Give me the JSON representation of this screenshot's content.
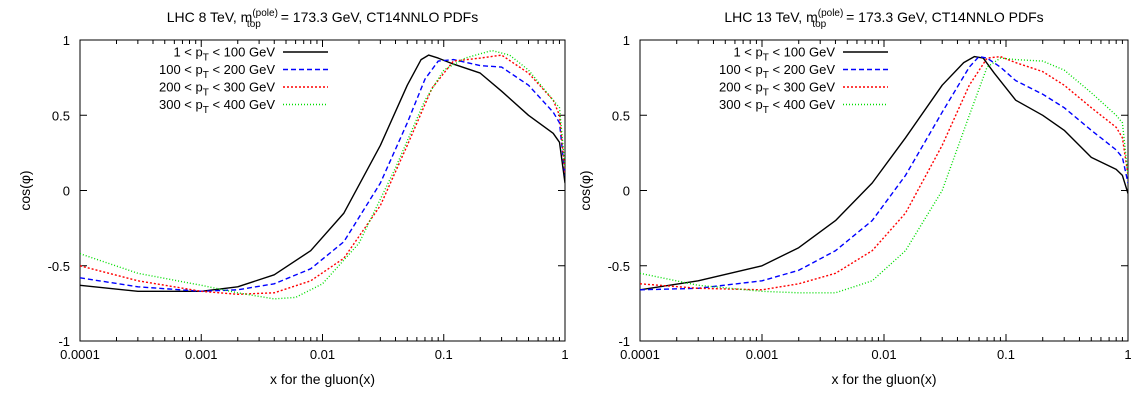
{
  "chart_data": [
    {
      "type": "line",
      "title": {
        "pre": "LHC 8 TeV, m",
        "sup": "(pole)",
        "sub": "top",
        "post": "= 173.3 GeV, CT14NNLO PDFs"
      },
      "xlabel": "x for the gluon(x)",
      "ylabel": "cos(φ)",
      "xscale": "log",
      "xlim": [
        0.0001,
        1
      ],
      "ylim": [
        -1,
        1
      ],
      "xticks": [
        {
          "v": 0.0001,
          "label": "0.0001"
        },
        {
          "v": 0.001,
          "label": "0.001"
        },
        {
          "v": 0.01,
          "label": "0.01"
        },
        {
          "v": 0.1,
          "label": "0.1"
        },
        {
          "v": 1,
          "label": "1"
        }
      ],
      "yticks": [
        {
          "v": -1,
          "label": "-1"
        },
        {
          "v": -0.5,
          "label": "-0.5"
        },
        {
          "v": 0,
          "label": "0"
        },
        {
          "v": 0.5,
          "label": "0.5"
        },
        {
          "v": 1,
          "label": "1"
        }
      ],
      "legend_position": "top-left",
      "series": [
        {
          "legend": {
            "pre": "1 < p",
            "sub": "T",
            "post": " < 100 GeV"
          },
          "color": "#000000",
          "dash": "",
          "x": [
            0.0001,
            0.0003,
            0.001,
            0.002,
            0.004,
            0.008,
            0.015,
            0.03,
            0.05,
            0.065,
            0.075,
            0.09,
            0.12,
            0.2,
            0.3,
            0.5,
            0.8,
            0.9,
            1.0
          ],
          "y": [
            -0.63,
            -0.67,
            -0.67,
            -0.64,
            -0.56,
            -0.4,
            -0.15,
            0.3,
            0.7,
            0.87,
            0.9,
            0.88,
            0.84,
            0.78,
            0.66,
            0.5,
            0.38,
            0.32,
            0.05
          ]
        },
        {
          "legend": {
            "pre": "100 < p",
            "sub": "T",
            "post": " < 200 GeV"
          },
          "color": "#0000ff",
          "dash": "5,3",
          "x": [
            0.0001,
            0.0003,
            0.001,
            0.002,
            0.004,
            0.008,
            0.015,
            0.03,
            0.05,
            0.07,
            0.09,
            0.12,
            0.2,
            0.3,
            0.5,
            0.8,
            0.9,
            1.0
          ],
          "y": [
            -0.58,
            -0.64,
            -0.67,
            -0.66,
            -0.62,
            -0.52,
            -0.34,
            0.05,
            0.45,
            0.74,
            0.86,
            0.87,
            0.83,
            0.82,
            0.7,
            0.52,
            0.45,
            0.1
          ]
        },
        {
          "legend": {
            "pre": "200 < p",
            "sub": "T",
            "post": " < 300 GeV"
          },
          "color": "#ff0000",
          "dash": "2,2",
          "x": [
            0.0001,
            0.0003,
            0.001,
            0.002,
            0.004,
            0.008,
            0.015,
            0.03,
            0.05,
            0.08,
            0.12,
            0.2,
            0.3,
            0.5,
            0.8,
            0.9,
            1.0
          ],
          "y": [
            -0.5,
            -0.6,
            -0.67,
            -0.69,
            -0.68,
            -0.6,
            -0.45,
            -0.1,
            0.3,
            0.68,
            0.86,
            0.88,
            0.9,
            0.78,
            0.6,
            0.5,
            0.12
          ]
        },
        {
          "legend": {
            "pre": "300 < p",
            "sub": "T",
            "post": " < 400 GeV"
          },
          "color": "#00dd00",
          "dash": "1,2",
          "x": [
            0.0001,
            0.0003,
            0.001,
            0.002,
            0.004,
            0.006,
            0.01,
            0.02,
            0.04,
            0.07,
            0.1,
            0.15,
            0.25,
            0.35,
            0.5,
            0.8,
            0.9,
            1.0
          ],
          "y": [
            -0.42,
            -0.55,
            -0.63,
            -0.68,
            -0.72,
            -0.71,
            -0.62,
            -0.35,
            0.15,
            0.6,
            0.8,
            0.88,
            0.93,
            0.9,
            0.8,
            0.6,
            0.55,
            0.15
          ]
        }
      ]
    },
    {
      "type": "line",
      "title": {
        "pre": "LHC 13 TeV, m",
        "sup": "(pole)",
        "sub": "top",
        "post": "= 173.3 GeV, CT14NNLO PDFs"
      },
      "xlabel": "x for the gluon(x)",
      "ylabel": "cos(φ)",
      "xscale": "log",
      "xlim": [
        0.0001,
        1
      ],
      "ylim": [
        -1,
        1
      ],
      "xticks": [
        {
          "v": 0.0001,
          "label": "0.0001"
        },
        {
          "v": 0.001,
          "label": "0.001"
        },
        {
          "v": 0.01,
          "label": "0.01"
        },
        {
          "v": 0.1,
          "label": "0.1"
        },
        {
          "v": 1,
          "label": "1"
        }
      ],
      "yticks": [
        {
          "v": -1,
          "label": "-1"
        },
        {
          "v": -0.5,
          "label": "-0.5"
        },
        {
          "v": 0,
          "label": "0"
        },
        {
          "v": 0.5,
          "label": "0.5"
        },
        {
          "v": 1,
          "label": "1"
        }
      ],
      "legend_position": "top-left",
      "series": [
        {
          "legend": {
            "pre": "1 < p",
            "sub": "T",
            "post": " < 100 GeV"
          },
          "color": "#000000",
          "dash": "",
          "x": [
            0.0001,
            0.0003,
            0.001,
            0.002,
            0.004,
            0.008,
            0.015,
            0.03,
            0.045,
            0.055,
            0.065,
            0.08,
            0.12,
            0.2,
            0.3,
            0.5,
            0.8,
            0.9,
            1.0
          ],
          "y": [
            -0.66,
            -0.6,
            -0.5,
            -0.38,
            -0.2,
            0.05,
            0.35,
            0.7,
            0.85,
            0.89,
            0.88,
            0.78,
            0.6,
            0.5,
            0.4,
            0.22,
            0.14,
            0.1,
            -0.02
          ]
        },
        {
          "legend": {
            "pre": "100 < p",
            "sub": "T",
            "post": " < 200 GeV"
          },
          "color": "#0000ff",
          "dash": "5,3",
          "x": [
            0.0001,
            0.0003,
            0.001,
            0.002,
            0.004,
            0.008,
            0.015,
            0.03,
            0.05,
            0.06,
            0.07,
            0.09,
            0.12,
            0.2,
            0.3,
            0.5,
            0.8,
            0.9,
            1.0
          ],
          "y": [
            -0.66,
            -0.65,
            -0.6,
            -0.53,
            -0.4,
            -0.2,
            0.1,
            0.52,
            0.82,
            0.89,
            0.88,
            0.82,
            0.73,
            0.64,
            0.55,
            0.4,
            0.27,
            0.22,
            0.05
          ]
        },
        {
          "legend": {
            "pre": "200 < p",
            "sub": "T",
            "post": " < 300 GeV"
          },
          "color": "#ff0000",
          "dash": "2,2",
          "x": [
            0.0001,
            0.0003,
            0.001,
            0.002,
            0.004,
            0.008,
            0.015,
            0.03,
            0.05,
            0.07,
            0.09,
            0.12,
            0.2,
            0.3,
            0.5,
            0.8,
            0.9,
            1.0
          ],
          "y": [
            -0.62,
            -0.65,
            -0.66,
            -0.62,
            -0.55,
            -0.4,
            -0.15,
            0.3,
            0.7,
            0.88,
            0.89,
            0.85,
            0.79,
            0.7,
            0.55,
            0.42,
            0.35,
            0.1
          ]
        },
        {
          "legend": {
            "pre": "300 < p",
            "sub": "T",
            "post": " < 400 GeV"
          },
          "color": "#00dd00",
          "dash": "1,2",
          "x": [
            0.0001,
            0.0003,
            0.001,
            0.002,
            0.004,
            0.008,
            0.015,
            0.03,
            0.05,
            0.07,
            0.09,
            0.12,
            0.2,
            0.3,
            0.5,
            0.8,
            0.9,
            1.0
          ],
          "y": [
            -0.55,
            -0.63,
            -0.67,
            -0.68,
            -0.68,
            -0.6,
            -0.4,
            0.0,
            0.5,
            0.82,
            0.88,
            0.87,
            0.86,
            0.8,
            0.65,
            0.5,
            0.45,
            0.1
          ]
        }
      ]
    }
  ]
}
